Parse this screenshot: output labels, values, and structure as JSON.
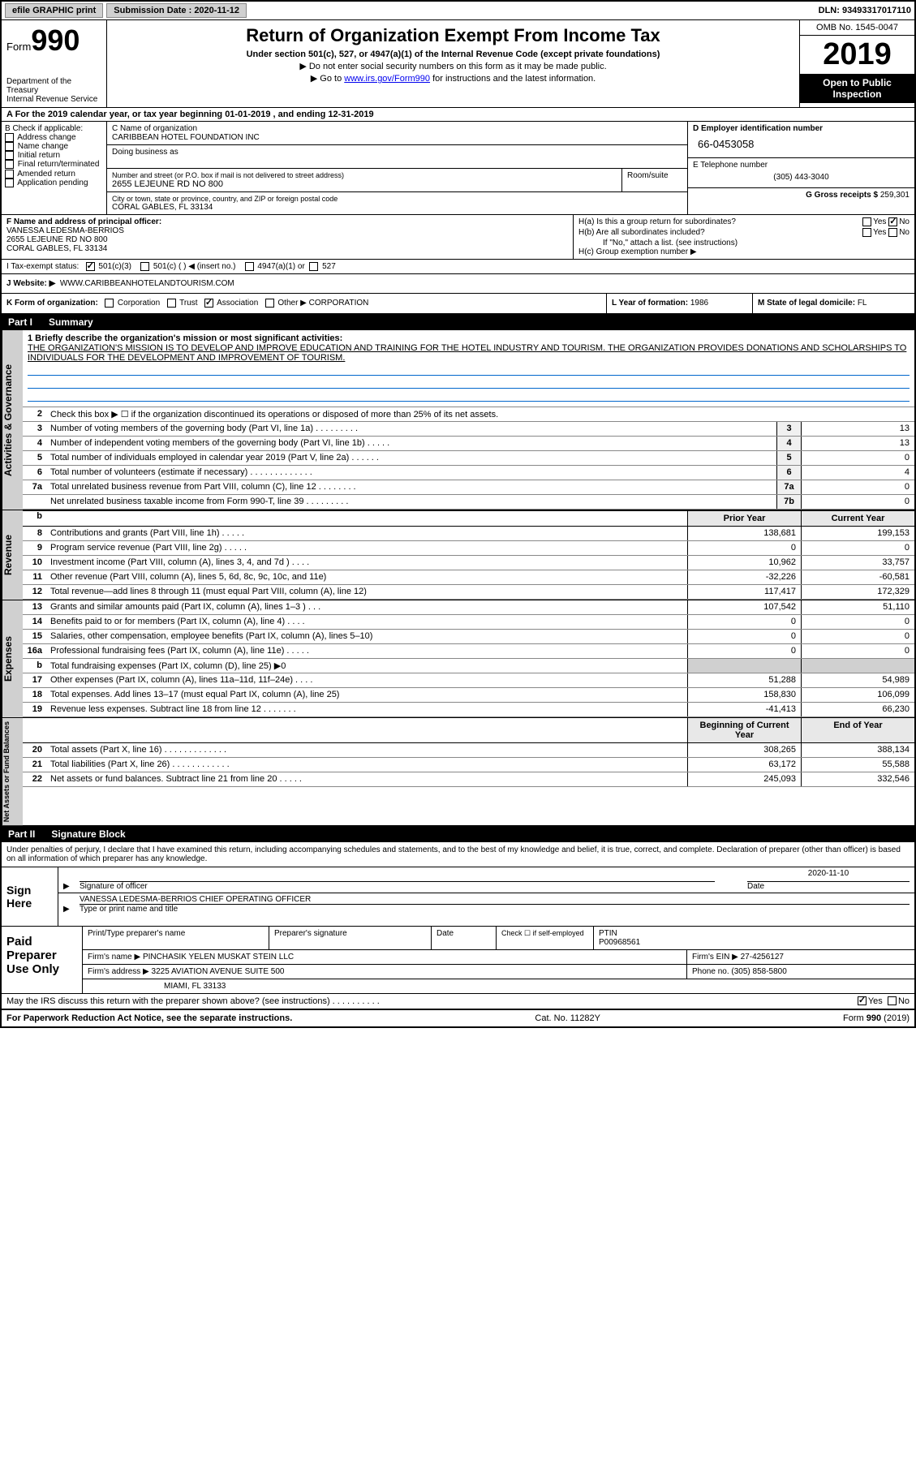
{
  "topbar": {
    "efile_label": "efile GRAPHIC print",
    "submission_label": "Submission Date : 2020-11-12",
    "dln_label": "DLN: 93493317017110"
  },
  "header": {
    "form_label": "Form",
    "form_number": "990",
    "dept": "Department of the Treasury\nInternal Revenue Service",
    "title": "Return of Organization Exempt From Income Tax",
    "subtitle": "Under section 501(c), 527, or 4947(a)(1) of the Internal Revenue Code (except private foundations)",
    "instr1": "▶ Do not enter social security numbers on this form as it may be made public.",
    "instr2_pre": "▶ Go to ",
    "instr2_link": "www.irs.gov/Form990",
    "instr2_post": " for instructions and the latest information.",
    "omb": "OMB No. 1545-0047",
    "year": "2019",
    "open_public": "Open to Public Inspection"
  },
  "period": "A For the 2019 calendar year, or tax year beginning 01-01-2019    , and ending 12-31-2019",
  "section_b": {
    "label": "B Check if applicable:",
    "opts": [
      "Address change",
      "Name change",
      "Initial return",
      "Final return/terminated",
      "Amended return",
      "Application pending"
    ]
  },
  "section_c": {
    "name_label": "C Name of organization",
    "name": "CARIBBEAN HOTEL FOUNDATION INC",
    "dba_label": "Doing business as",
    "addr_label": "Number and street (or P.O. box if mail is not delivered to street address)",
    "addr": "2655 LEJEUNE RD NO 800",
    "room_label": "Room/suite",
    "city_label": "City or town, state or province, country, and ZIP or foreign postal code",
    "city": "CORAL GABLES, FL  33134"
  },
  "section_d": {
    "label": "D Employer identification number",
    "ein": "66-0453058",
    "phone_label": "E Telephone number",
    "phone": "(305) 443-3040",
    "gross_label": "G Gross receipts $",
    "gross": "259,301"
  },
  "section_f": {
    "label": "F Name and address of principal officer:",
    "name": "VANESSA LEDESMA-BERRIOS",
    "addr1": "2655 LEJEUNE RD NO 800",
    "addr2": "CORAL GABLES, FL  33134"
  },
  "section_h": {
    "ha": "H(a)  Is this a group return for subordinates?",
    "hb": "H(b)  Are all subordinates included?",
    "hb_note": "If \"No,\" attach a list. (see instructions)",
    "hc": "H(c)  Group exemption number ▶",
    "yes": "Yes",
    "no": "No"
  },
  "tax_status": {
    "label": "I   Tax-exempt status:",
    "opt1": "501(c)(3)",
    "opt2": "501(c) (  ) ◀ (insert no.)",
    "opt3": "4947(a)(1) or",
    "opt4": "527"
  },
  "website": {
    "label": "J   Website: ▶",
    "value": "WWW.CARIBBEANHOTELANDTOURISM.COM"
  },
  "k_row": {
    "label": "K Form of organization:",
    "opts": [
      "Corporation",
      "Trust",
      "Association",
      "Other ▶"
    ],
    "other_val": "CORPORATION",
    "l_label": "L Year of formation:",
    "l_val": "1986",
    "m_label": "M State of legal domicile:",
    "m_val": "FL"
  },
  "part1": {
    "num": "Part I",
    "title": "Summary"
  },
  "summary": {
    "line1_label": "1  Briefly describe the organization's mission or most significant activities:",
    "line1_text": "THE ORGANIZATION'S MISSION IS TO DEVELOP AND IMPROVE EDUCATION AND TRAINING FOR THE HOTEL INDUSTRY AND TOURISM. THE ORGANIZATION PROVIDES DONATIONS AND SCHOLARSHIPS TO INDIVIDUALS FOR THE DEVELOPMENT AND IMPROVEMENT OF TOURISM.",
    "line2": "Check this box ▶ ☐  if the organization discontinued its operations or disposed of more than 25% of its net assets.",
    "rows_ag": [
      {
        "n": "3",
        "t": "Number of voting members of the governing body (Part VI, line 1a)   .   .   .   .   .   .   .   .   .",
        "box": "3",
        "v": "13"
      },
      {
        "n": "4",
        "t": "Number of independent voting members of the governing body (Part VI, line 1b)   .   .   .   .   .",
        "box": "4",
        "v": "13"
      },
      {
        "n": "5",
        "t": "Total number of individuals employed in calendar year 2019 (Part V, line 2a)   .   .   .   .   .   .",
        "box": "5",
        "v": "0"
      },
      {
        "n": "6",
        "t": "Total number of volunteers (estimate if necessary)    .   .   .   .   .   .   .   .   .   .   .   .   .",
        "box": "6",
        "v": "4"
      },
      {
        "n": "7a",
        "t": "Total unrelated business revenue from Part VIII, column (C), line 12   .   .   .   .   .   .   .   .",
        "box": "7a",
        "v": "0"
      },
      {
        "n": "",
        "t": "Net unrelated business taxable income from Form 990-T, line 39    .   .   .   .   .   .   .   .   .",
        "box": "7b",
        "v": "0"
      }
    ],
    "prior_label": "Prior Year",
    "current_label": "Current Year",
    "rows_rev": [
      {
        "n": "8",
        "t": "Contributions and grants (Part VIII, line 1h)   .   .   .   .   .",
        "py": "138,681",
        "cy": "199,153"
      },
      {
        "n": "9",
        "t": "Program service revenue (Part VIII, line 2g)   .   .   .   .   .",
        "py": "0",
        "cy": "0"
      },
      {
        "n": "10",
        "t": "Investment income (Part VIII, column (A), lines 3, 4, and 7d )   .   .   .   .",
        "py": "10,962",
        "cy": "33,757"
      },
      {
        "n": "11",
        "t": "Other revenue (Part VIII, column (A), lines 5, 6d, 8c, 9c, 10c, and 11e)",
        "py": "-32,226",
        "cy": "-60,581"
      },
      {
        "n": "12",
        "t": "Total revenue—add lines 8 through 11 (must equal Part VIII, column (A), line 12)",
        "py": "117,417",
        "cy": "172,329"
      }
    ],
    "rows_exp": [
      {
        "n": "13",
        "t": "Grants and similar amounts paid (Part IX, column (A), lines 1–3 )   .   .   .",
        "py": "107,542",
        "cy": "51,110"
      },
      {
        "n": "14",
        "t": "Benefits paid to or for members (Part IX, column (A), line 4)   .   .   .   .",
        "py": "0",
        "cy": "0"
      },
      {
        "n": "15",
        "t": "Salaries, other compensation, employee benefits (Part IX, column (A), lines 5–10)",
        "py": "0",
        "cy": "0"
      },
      {
        "n": "16a",
        "t": "Professional fundraising fees (Part IX, column (A), line 11e)   .   .   .   .   .",
        "py": "0",
        "cy": "0"
      },
      {
        "n": "b",
        "t": "Total fundraising expenses (Part IX, column (D), line 25) ▶0",
        "py": "",
        "cy": "",
        "shaded": true
      },
      {
        "n": "17",
        "t": "Other expenses (Part IX, column (A), lines 11a–11d, 11f–24e)   .   .   .   .",
        "py": "51,288",
        "cy": "54,989"
      },
      {
        "n": "18",
        "t": "Total expenses. Add lines 13–17 (must equal Part IX, column (A), line 25)",
        "py": "158,830",
        "cy": "106,099"
      },
      {
        "n": "19",
        "t": "Revenue less expenses. Subtract line 18 from line 12   .   .   .   .   .   .   .",
        "py": "-41,413",
        "cy": "66,230"
      }
    ],
    "begin_label": "Beginning of Current Year",
    "end_label": "End of Year",
    "rows_na": [
      {
        "n": "20",
        "t": "Total assets (Part X, line 16)   .   .   .   .   .   .   .   .   .   .   .   .   .",
        "py": "308,265",
        "cy": "388,134"
      },
      {
        "n": "21",
        "t": "Total liabilities (Part X, line 26)   .   .   .   .   .   .   .   .   .   .   .   .",
        "py": "63,172",
        "cy": "55,588"
      },
      {
        "n": "22",
        "t": "Net assets or fund balances. Subtract line 21 from line 20   .   .   .   .   .",
        "py": "245,093",
        "cy": "332,546"
      }
    ]
  },
  "part2": {
    "num": "Part II",
    "title": "Signature Block"
  },
  "sig": {
    "perjury": "Under penalties of perjury, I declare that I have examined this return, including accompanying schedules and statements, and to the best of my knowledge and belief, it is true, correct, and complete. Declaration of preparer (other than officer) is based on all information of which preparer has any knowledge.",
    "sign_here": "Sign Here",
    "sig_officer": "Signature of officer",
    "date_label": "Date",
    "date_val": "2020-11-10",
    "name_title": "VANESSA LEDESMA-BERRIOS  CHIEF OPERATING OFFICER",
    "type_label": "Type or print name and title"
  },
  "preparer": {
    "label": "Paid Preparer Use Only",
    "print_name_label": "Print/Type preparer's name",
    "sig_label": "Preparer's signature",
    "date_label": "Date",
    "check_label": "Check ☐ if self-employed",
    "ptin_label": "PTIN",
    "ptin": "P00968561",
    "firm_name_label": "Firm's name    ▶",
    "firm_name": "PINCHASIK YELEN MUSKAT STEIN LLC",
    "firm_ein_label": "Firm's EIN ▶",
    "firm_ein": "27-4256127",
    "firm_addr_label": "Firm's address ▶",
    "firm_addr1": "3225 AVIATION AVENUE SUITE 500",
    "firm_addr2": "MIAMI, FL  33133",
    "phone_label": "Phone no.",
    "phone": "(305) 858-5800"
  },
  "discuss": {
    "text": "May the IRS discuss this return with the preparer shown above? (see instructions)    .   .   .   .   .   .   .   .   .   .",
    "yes": "Yes",
    "no": "No"
  },
  "footer": {
    "left": "For Paperwork Reduction Act Notice, see the separate instructions.",
    "mid": "Cat. No. 11282Y",
    "right": "Form 990 (2019)"
  },
  "side_labels": {
    "ag": "Activities & Governance",
    "rev": "Revenue",
    "exp": "Expenses",
    "na": "Net Assets or Fund Balances"
  }
}
